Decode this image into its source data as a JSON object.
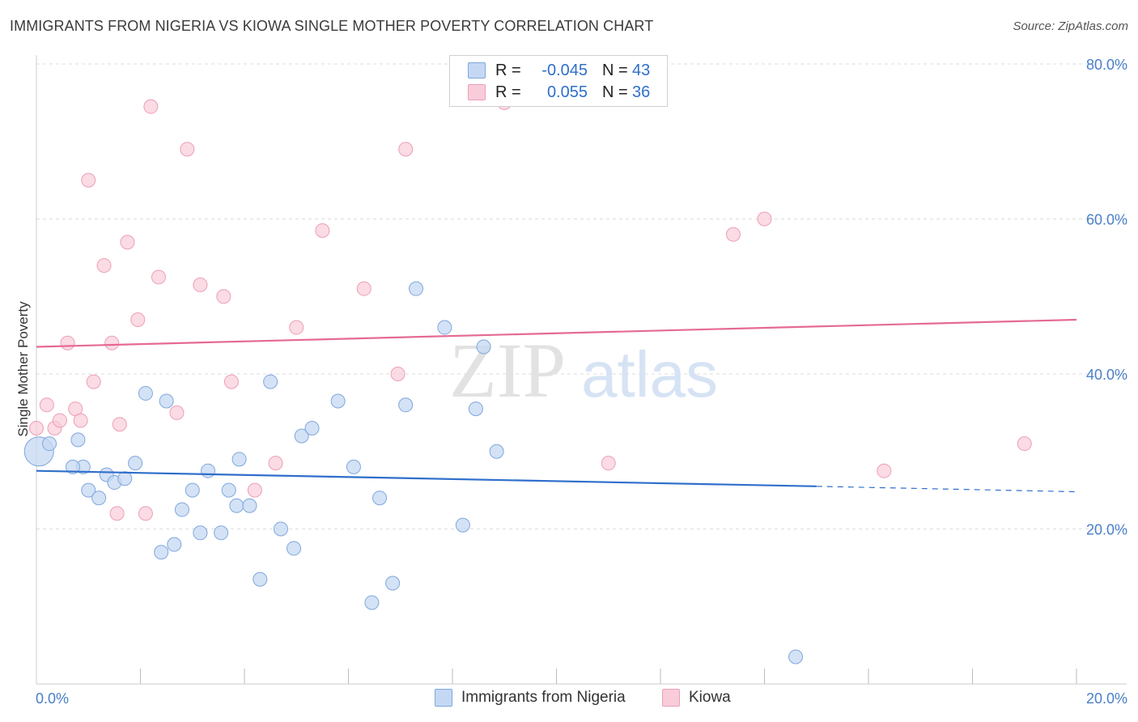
{
  "header": {
    "title": "IMMIGRANTS FROM NIGERIA VS KIOWA SINGLE MOTHER POVERTY CORRELATION CHART",
    "source": "Source: ZipAtlas.com"
  },
  "watermark": {
    "zip": "ZIP",
    "atlas": "atlas"
  },
  "legend": {
    "rows": [
      {
        "r_label": "R =",
        "r_value": "-0.045",
        "n_label": "N =",
        "n_value": "43"
      },
      {
        "r_label": "R =",
        "r_value": "0.055",
        "n_label": "N =",
        "n_value": "36"
      }
    ]
  },
  "colors": {
    "nigeria_fill": "#c5d8f3",
    "nigeria_stroke": "#7fa7dd",
    "nigeria_line": "#2f6fcb",
    "kiowa_fill": "#f9ccd9",
    "kiowa_stroke": "#ec9fb6",
    "kiowa_line": "#e56a94",
    "axis_tick": "#4a7fc8",
    "grid": "#dddddd"
  },
  "chart_data": {
    "type": "scatter",
    "title": "IMMIGRANTS FROM NIGERIA VS KIOWA SINGLE MOTHER POVERTY CORRELATION CHART",
    "xlabel": "",
    "ylabel": "Single Mother Poverty",
    "xlim": [
      0,
      20
    ],
    "ylim": [
      0,
      82
    ],
    "x_ticks": [
      "0.0%",
      "20.0%"
    ],
    "y_ticks": [
      {
        "value": 20,
        "label": "20.0%"
      },
      {
        "value": 40,
        "label": "40.0%"
      },
      {
        "value": 60,
        "label": "60.0%"
      },
      {
        "value": 80,
        "label": "80.0%"
      }
    ],
    "series": [
      {
        "name": "Immigrants from Nigeria",
        "points": [
          {
            "x": 0.05,
            "y": 30.0,
            "big": true
          },
          {
            "x": 0.25,
            "y": 31.0
          },
          {
            "x": 0.9,
            "y": 28.0
          },
          {
            "x": 0.7,
            "y": 28.0
          },
          {
            "x": 0.8,
            "y": 31.5
          },
          {
            "x": 1.35,
            "y": 27.0
          },
          {
            "x": 1.5,
            "y": 26.0
          },
          {
            "x": 1.7,
            "y": 26.5
          },
          {
            "x": 1.9,
            "y": 28.5
          },
          {
            "x": 1.0,
            "y": 25.0
          },
          {
            "x": 1.2,
            "y": 24.0
          },
          {
            "x": 2.1,
            "y": 37.5
          },
          {
            "x": 2.5,
            "y": 36.5
          },
          {
            "x": 2.4,
            "y": 17.0
          },
          {
            "x": 2.65,
            "y": 18.0
          },
          {
            "x": 2.8,
            "y": 22.5
          },
          {
            "x": 3.0,
            "y": 25.0
          },
          {
            "x": 3.15,
            "y": 19.5
          },
          {
            "x": 3.3,
            "y": 27.5
          },
          {
            "x": 3.55,
            "y": 19.5
          },
          {
            "x": 3.7,
            "y": 25.0
          },
          {
            "x": 3.85,
            "y": 23.0
          },
          {
            "x": 3.9,
            "y": 29.0
          },
          {
            "x": 4.1,
            "y": 23.0
          },
          {
            "x": 4.3,
            "y": 13.5
          },
          {
            "x": 4.5,
            "y": 39.0
          },
          {
            "x": 4.7,
            "y": 20.0
          },
          {
            "x": 4.95,
            "y": 17.5
          },
          {
            "x": 5.1,
            "y": 32.0
          },
          {
            "x": 5.3,
            "y": 33.0
          },
          {
            "x": 5.8,
            "y": 36.5
          },
          {
            "x": 6.1,
            "y": 28.0
          },
          {
            "x": 6.45,
            "y": 10.5
          },
          {
            "x": 6.6,
            "y": 24.0
          },
          {
            "x": 6.85,
            "y": 13.0
          },
          {
            "x": 7.1,
            "y": 36.0
          },
          {
            "x": 7.3,
            "y": 51.0
          },
          {
            "x": 7.85,
            "y": 46.0
          },
          {
            "x": 8.2,
            "y": 20.5
          },
          {
            "x": 8.45,
            "y": 35.5
          },
          {
            "x": 8.6,
            "y": 43.5
          },
          {
            "x": 8.85,
            "y": 30.0
          },
          {
            "x": 14.6,
            "y": 3.5
          }
        ],
        "trend": {
          "x": [
            0,
            15.0
          ],
          "y": [
            27.5,
            25.5
          ],
          "dashed_to": [
            20.0,
            24.8
          ]
        }
      },
      {
        "name": "Kiowa",
        "points": [
          {
            "x": 0.0,
            "y": 33.0
          },
          {
            "x": 0.2,
            "y": 36.0
          },
          {
            "x": 0.35,
            "y": 33.0
          },
          {
            "x": 0.45,
            "y": 34.0
          },
          {
            "x": 0.6,
            "y": 44.0
          },
          {
            "x": 0.75,
            "y": 35.5
          },
          {
            "x": 0.85,
            "y": 34.0
          },
          {
            "x": 1.0,
            "y": 65.0
          },
          {
            "x": 1.1,
            "y": 39.0
          },
          {
            "x": 1.3,
            "y": 54.0
          },
          {
            "x": 1.45,
            "y": 44.0
          },
          {
            "x": 1.55,
            "y": 22.0
          },
          {
            "x": 1.6,
            "y": 33.5
          },
          {
            "x": 1.75,
            "y": 57.0
          },
          {
            "x": 1.95,
            "y": 47.0
          },
          {
            "x": 2.1,
            "y": 22.0
          },
          {
            "x": 2.2,
            "y": 74.5
          },
          {
            "x": 2.35,
            "y": 52.5
          },
          {
            "x": 2.7,
            "y": 35.0
          },
          {
            "x": 2.9,
            "y": 69.0
          },
          {
            "x": 3.15,
            "y": 51.5
          },
          {
            "x": 3.6,
            "y": 50.0
          },
          {
            "x": 3.75,
            "y": 39.0
          },
          {
            "x": 4.2,
            "y": 25.0
          },
          {
            "x": 4.6,
            "y": 28.5
          },
          {
            "x": 5.0,
            "y": 46.0
          },
          {
            "x": 5.5,
            "y": 58.5
          },
          {
            "x": 6.3,
            "y": 51.0
          },
          {
            "x": 6.95,
            "y": 40.0
          },
          {
            "x": 7.1,
            "y": 69.0
          },
          {
            "x": 9.0,
            "y": 75.0
          },
          {
            "x": 11.0,
            "y": 28.5
          },
          {
            "x": 13.4,
            "y": 58.0
          },
          {
            "x": 14.0,
            "y": 60.0
          },
          {
            "x": 16.3,
            "y": 27.5
          },
          {
            "x": 19.0,
            "y": 31.0
          }
        ],
        "trend": {
          "x": [
            0,
            20.0
          ],
          "y": [
            43.5,
            47.0
          ]
        }
      }
    ]
  },
  "bottom_legend": {
    "items": [
      {
        "label": "Immigrants from Nigeria"
      },
      {
        "label": "Kiowa"
      }
    ]
  }
}
